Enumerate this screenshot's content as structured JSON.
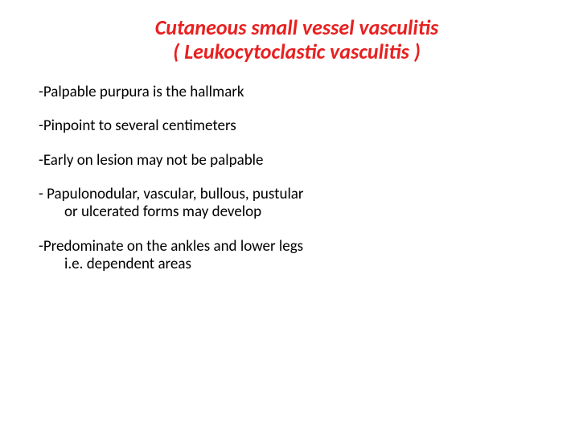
{
  "title": {
    "line1": "Cutaneous small vessel vasculitis",
    "line2": "( Leukocytoclastic vasculitis )",
    "color": "#e82020",
    "fontsize": 26
  },
  "body": {
    "color": "#000000",
    "fontsize": 19,
    "items": [
      "-Palpable purpura is the hallmark",
      "-Pinpoint to several centimeters",
      "-Early on lesion may not be palpable",
      "- Papulonodular, vascular, bullous, pustular or ulcerated forms may develop",
      "-Predominate on the ankles and lower legs i.e. dependent areas"
    ]
  },
  "background_color": "#ffffff"
}
